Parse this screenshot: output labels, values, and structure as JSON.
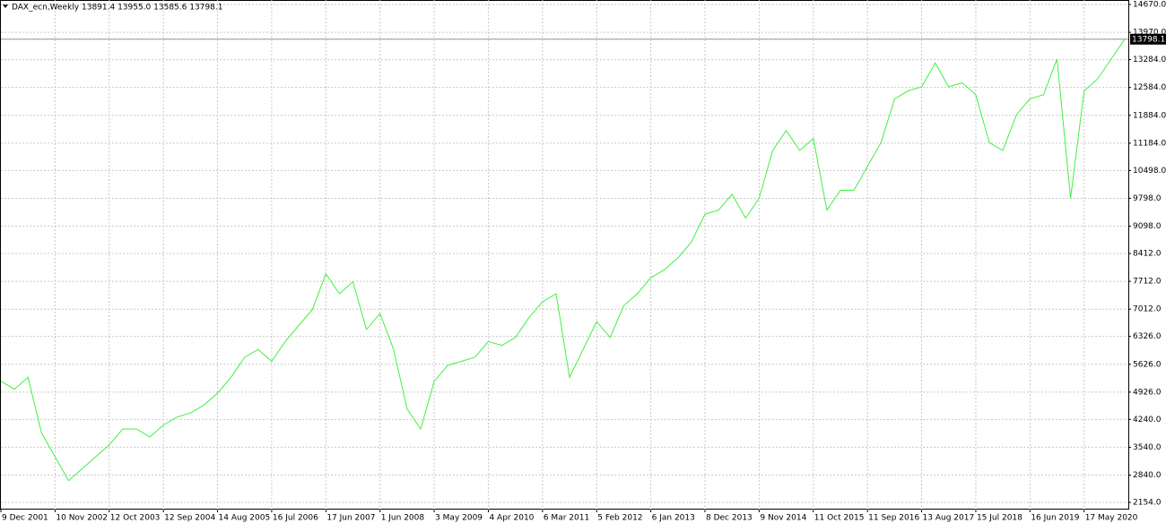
{
  "chart_data": {
    "type": "line",
    "title": "DAX_ecn,Weekly  13891.4 13955.0 13585.6 13798.1",
    "categories": [
      "9 Dec 2001",
      null,
      null,
      null,
      "10 Nov 2002",
      null,
      null,
      null,
      "12 Oct 2003",
      null,
      null,
      null,
      "12 Sep 2004",
      null,
      null,
      null,
      "14 Aug 2005",
      null,
      null,
      null,
      "16 Jul 2006",
      null,
      null,
      null,
      "17 Jun 2007",
      null,
      null,
      null,
      "1 Jun 2008",
      null,
      null,
      null,
      "3 May 2009",
      null,
      null,
      null,
      "4 Apr 2010",
      null,
      null,
      null,
      "6 Mar 2011",
      null,
      null,
      null,
      "5 Feb 2012",
      null,
      null,
      null,
      "6 Jan 2013",
      null,
      null,
      null,
      "8 Dec 2013",
      null,
      null,
      null,
      "9 Nov 2014",
      null,
      null,
      null,
      "11 Oct 2015",
      null,
      null,
      null,
      "11 Sep 2016",
      null,
      null,
      null,
      "13 Aug 2017",
      null,
      null,
      null,
      "15 Jul 2018",
      null,
      null,
      null,
      "16 Jun 2019",
      null,
      null,
      null,
      "17 May 2020",
      null,
      null,
      null
    ],
    "series": [
      {
        "name": "DAX_ecn",
        "color": "#40f040",
        "values": [
          5200,
          5000,
          5300,
          3900,
          3300,
          2700,
          3000,
          3300,
          3600,
          4000,
          4000,
          3800,
          4100,
          4300,
          4400,
          4600,
          4900,
          5300,
          5800,
          6000,
          5700,
          6200,
          6600,
          7000,
          7900,
          7400,
          7700,
          6500,
          6900,
          6000,
          4500,
          4000,
          5200,
          5600,
          5700,
          5800,
          6200,
          6100,
          6300,
          6800,
          7200,
          7400,
          5300,
          6000,
          6700,
          6300,
          7100,
          7400,
          7800,
          8000,
          8300,
          8700,
          9400,
          9500,
          9900,
          9300,
          9800,
          11000,
          11500,
          11000,
          11300,
          9500,
          10000,
          10000,
          10600,
          11200,
          12300,
          12500,
          12600,
          13200,
          12600,
          12700,
          12400,
          11200,
          11000,
          11900,
          12300,
          12400,
          13300,
          9800,
          12500,
          12800,
          13300,
          13798.1
        ]
      }
    ],
    "last_price": 13798.1,
    "ylim": [
      1974,
      14783
    ],
    "yticks": [
      {
        "value": 2154,
        "label": "2154.0"
      },
      {
        "value": 2840,
        "label": "2840.0"
      },
      {
        "value": 3540,
        "label": "3540.0"
      },
      {
        "value": 4240,
        "label": "4240.0"
      },
      {
        "value": 4926,
        "label": "4926.0"
      },
      {
        "value": 5626,
        "label": "5626.0"
      },
      {
        "value": 6326,
        "label": "6326.0"
      },
      {
        "value": 7012,
        "label": "7012.0"
      },
      {
        "value": 7712,
        "label": "7712.0"
      },
      {
        "value": 8412,
        "label": "8412.0"
      },
      {
        "value": 9098,
        "label": "9098.0"
      },
      {
        "value": 9798,
        "label": "9798.0"
      },
      {
        "value": 10498,
        "label": "10498.0"
      },
      {
        "value": 11184,
        "label": "11184.0"
      },
      {
        "value": 11884,
        "label": "11884.0"
      },
      {
        "value": 12584,
        "label": "12584.0"
      },
      {
        "value": 13284,
        "label": "13284.0"
      },
      {
        "value": 13970,
        "label": "13970.0"
      },
      {
        "value": 14670,
        "label": "14670.0"
      }
    ],
    "grid": true
  }
}
